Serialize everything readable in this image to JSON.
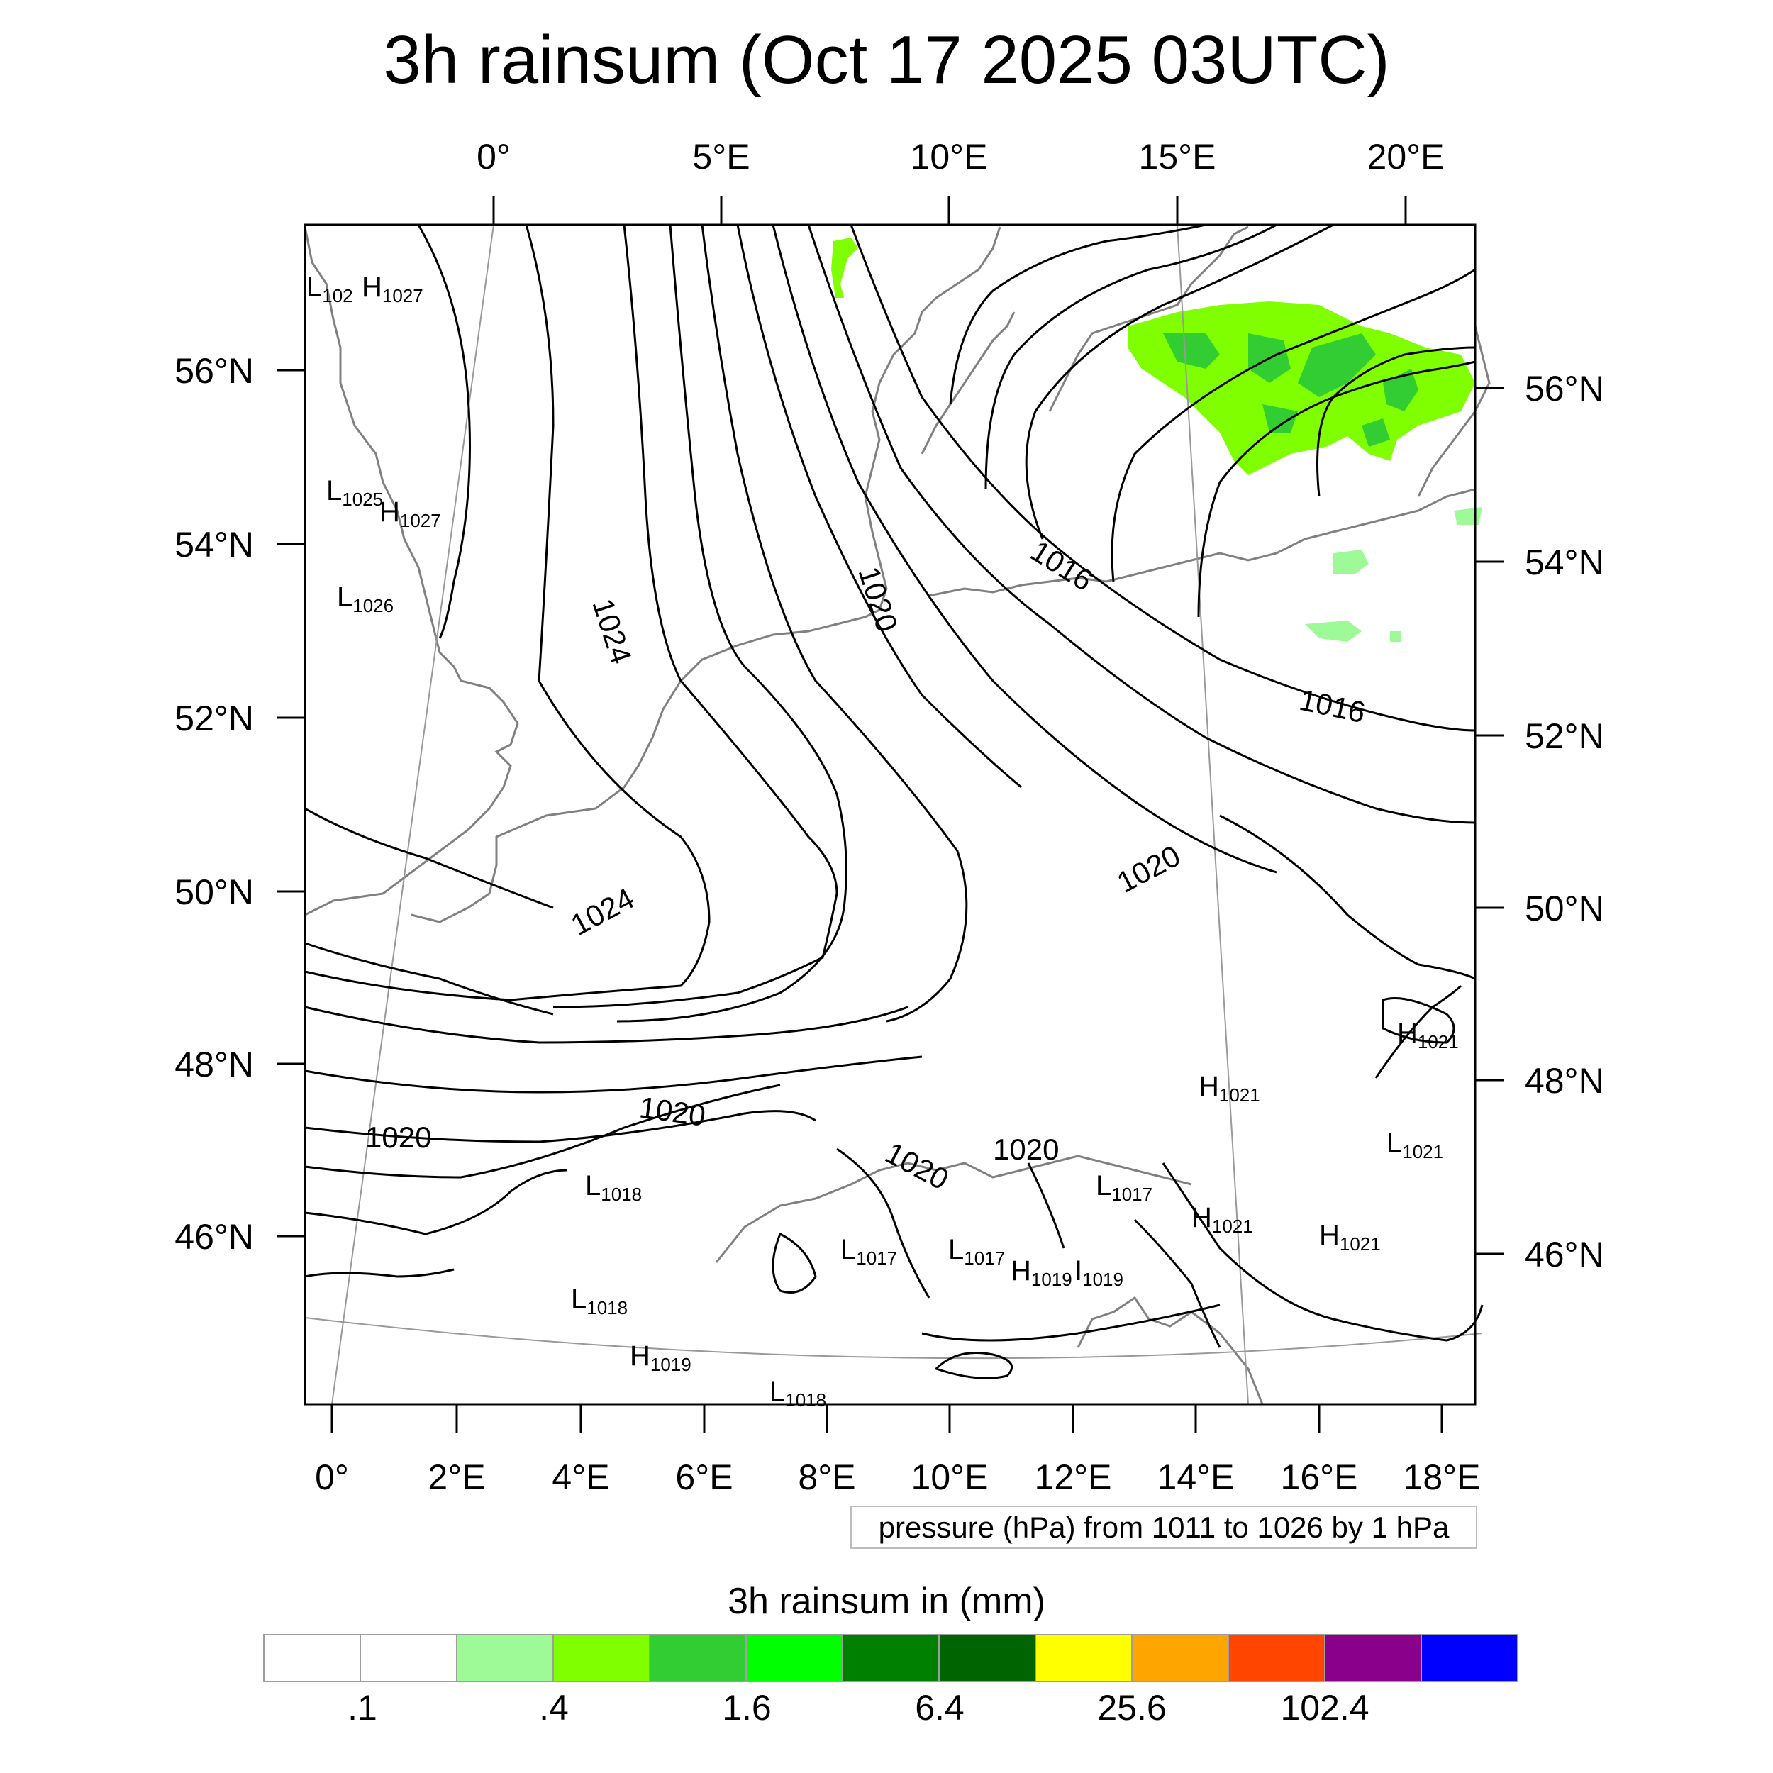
{
  "title": "3h rainsum (Oct 17 2025 03UTC)",
  "info_box": "pressure (hPa) from 1011 to 1026 by 1 hPa",
  "colorbar": {
    "title": "3h rainsum in (mm)",
    "colors": [
      "#ffffff",
      "#ffffff",
      "#9dfa97",
      "#80ff00",
      "#32cd32",
      "#00ff00",
      "#008000",
      "#006400",
      "#ffff00",
      "#ffa500",
      "#ff4500",
      "#8b008b",
      "#0000ff"
    ],
    "labels": [
      ".1",
      ".4",
      "1.6",
      "6.4",
      "25.6",
      "102.4"
    ]
  },
  "axes": {
    "top_lon": [
      "0°",
      "5°E",
      "10°E",
      "15°E",
      "20°E"
    ],
    "bottom_lon": [
      "0°",
      "2°E",
      "4°E",
      "6°E",
      "8°E",
      "10°E",
      "12°E",
      "14°E",
      "16°E",
      "18°E"
    ],
    "left_lat": [
      "56°N",
      "54°N",
      "52°N",
      "50°N",
      "48°N",
      "46°N"
    ],
    "right_lat": [
      "56°N",
      "54°N",
      "52°N",
      "50°N",
      "48°N",
      "46°N"
    ]
  },
  "contour_labels": [
    "1024",
    "1020",
    "1016",
    "1016",
    "1020",
    "1024",
    "1020",
    "1020",
    "1020",
    "1020"
  ],
  "pressure_markers": [
    {
      "kind": "L",
      "value": "102"
    },
    {
      "kind": "H",
      "value": "1027"
    },
    {
      "kind": "L",
      "value": "1025"
    },
    {
      "kind": "H",
      "value": "1027"
    },
    {
      "kind": "L",
      "value": "1026"
    },
    {
      "kind": "H",
      "value": "1021"
    },
    {
      "kind": "H",
      "value": "1021"
    },
    {
      "kind": "L",
      "value": "1021"
    },
    {
      "kind": "H",
      "value": "1021"
    },
    {
      "kind": "H",
      "value": "1021"
    },
    {
      "kind": "L",
      "value": "1018"
    },
    {
      "kind": "L",
      "value": "1017"
    },
    {
      "kind": "L",
      "value": "1017"
    },
    {
      "kind": "L",
      "value": "1017"
    },
    {
      "kind": "H",
      "value": "1019"
    },
    {
      "kind": "I",
      "value": "1019"
    },
    {
      "kind": "L",
      "value": "1018"
    },
    {
      "kind": "H",
      "value": "1019"
    },
    {
      "kind": "L",
      "value": "1018"
    }
  ]
}
